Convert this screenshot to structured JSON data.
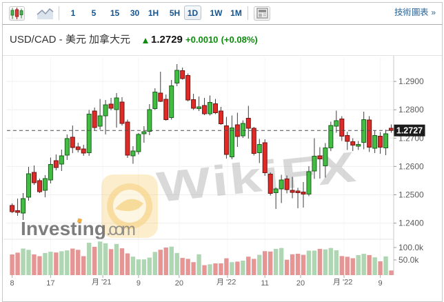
{
  "toolbar": {
    "timeframes": [
      "1",
      "5",
      "15",
      "30",
      "1H",
      "5H",
      "1D",
      "1W",
      "1M"
    ],
    "selected_timeframe": "1D",
    "tech_chart_link": "技術圖表 »"
  },
  "header": {
    "title": "USD/CAD - 美元 加拿大元",
    "last": "1.2729",
    "change": "+0.0010",
    "change_pct": "(+0.08%)"
  },
  "watermark": {
    "text": "WikiFX",
    "brand": "Investing",
    "brand_suffix": ".com"
  },
  "chart_data": {
    "type": "candlestick",
    "symbol": "USD/CAD",
    "interval": "1D",
    "last_price": 1.2727,
    "price_tag": "1.2727",
    "y_axis_labels": [
      "1.2900",
      "1.2800",
      "1.2700",
      "1.2600",
      "1.2500",
      "1.2400"
    ],
    "volume_axis_labels": [
      "100.0k",
      "50.0k"
    ],
    "x_axis_labels": [
      {
        "t": "8",
        "i": 0
      },
      {
        "t": "17",
        "i": 7
      },
      {
        "t": "月 '21",
        "i": 16.5
      },
      {
        "t": "9",
        "i": 23
      },
      {
        "t": "20",
        "i": 30.4
      },
      {
        "t": "月 '22",
        "i": 39.2
      },
      {
        "t": "11",
        "i": 46
      },
      {
        "t": "20",
        "i": 52.5
      },
      {
        "t": "月 '22",
        "i": 60.4
      },
      {
        "t": "9",
        "i": 67
      }
    ],
    "ohlc": [
      [
        1.24623,
        1.24696,
        1.24355,
        1.24404
      ],
      [
        1.2444,
        1.24866,
        1.24258,
        1.2438
      ],
      [
        1.24355,
        1.25061,
        1.24112,
        1.24866
      ],
      [
        1.24915,
        1.25985,
        1.24793,
        1.25742
      ],
      [
        1.25791,
        1.26034,
        1.25353,
        1.25426
      ],
      [
        1.25499,
        1.25572,
        1.25061,
        1.25109
      ],
      [
        1.25158,
        1.25693,
        1.24915,
        1.25572
      ],
      [
        1.25523,
        1.26314,
        1.25401,
        1.26071
      ],
      [
        1.26204,
        1.26423,
        1.25864,
        1.25961
      ],
      [
        1.26083,
        1.26594,
        1.25839,
        1.26375
      ],
      [
        1.26399,
        1.27129,
        1.26229,
        1.26983
      ],
      [
        1.27032,
        1.27445,
        1.26472,
        1.26667
      ],
      [
        1.26691,
        1.26837,
        1.26496,
        1.26594
      ],
      [
        1.26618,
        1.26764,
        1.26375,
        1.26472
      ],
      [
        1.26484,
        1.27993,
        1.26375,
        1.27847
      ],
      [
        1.27956,
        1.28078,
        1.27275,
        1.27372
      ],
      [
        1.27421,
        1.28382,
        1.27299,
        1.27786
      ],
      [
        1.27786,
        1.28345,
        1.27129,
        1.28175
      ],
      [
        1.282,
        1.28418,
        1.27981,
        1.28054
      ],
      [
        1.28005,
        1.28589,
        1.27372,
        1.28418
      ],
      [
        1.28273,
        1.28443,
        1.27445,
        1.27518
      ],
      [
        1.27567,
        1.27652,
        1.26302,
        1.26399
      ],
      [
        1.26375,
        1.26715,
        1.26095,
        1.26545
      ],
      [
        1.26521,
        1.27178,
        1.26423,
        1.27129
      ],
      [
        1.27153,
        1.27421,
        1.26837,
        1.27226
      ],
      [
        1.27238,
        1.282,
        1.27105,
        1.28005
      ],
      [
        1.28041,
        1.28759,
        1.27993,
        1.28625
      ],
      [
        1.28589,
        1.29343,
        1.28273,
        1.28297
      ],
      [
        1.2837,
        1.2854,
        1.27616,
        1.27652
      ],
      [
        1.27725,
        1.29051,
        1.27652,
        1.28844
      ],
      [
        1.28942,
        1.29611,
        1.28832,
        1.29392
      ],
      [
        1.2938,
        1.29489,
        1.29063,
        1.291
      ],
      [
        1.29209,
        1.29282,
        1.28297,
        1.28345
      ],
      [
        1.28358,
        1.28564,
        1.27993,
        1.28054
      ],
      [
        1.28041,
        1.28467,
        1.27956,
        1.28102
      ],
      [
        1.28151,
        1.28418,
        1.2781,
        1.27859
      ],
      [
        1.27859,
        1.28504,
        1.27798,
        1.2826
      ],
      [
        1.28212,
        1.28382,
        1.27847,
        1.27895
      ],
      [
        1.27956,
        1.28102,
        1.2747,
        1.27506
      ],
      [
        1.27433,
        1.27749,
        1.26277,
        1.26423
      ],
      [
        1.26338,
        1.27798,
        1.26253,
        1.2736
      ],
      [
        1.2747,
        1.27895,
        1.26691,
        1.27056
      ],
      [
        1.2708,
        1.27628,
        1.27007,
        1.27518
      ],
      [
        1.27701,
        1.28139,
        1.26983,
        1.27348
      ],
      [
        1.27348,
        1.27397,
        1.26387,
        1.2646
      ],
      [
        1.26484,
        1.26971,
        1.26119,
        1.26776
      ],
      [
        1.26837,
        1.26959,
        1.25669,
        1.25779
      ],
      [
        1.2573,
        1.25791,
        1.24976,
        1.25049
      ],
      [
        1.25073,
        1.25255,
        1.24501,
        1.25207
      ],
      [
        1.25207,
        1.25706,
        1.24708,
        1.25523
      ],
      [
        1.2556,
        1.25681,
        1.25049,
        1.25182
      ],
      [
        1.25158,
        1.25633,
        1.24878,
        1.25085
      ],
      [
        1.25134,
        1.25243,
        1.24526,
        1.25073
      ],
      [
        1.25097,
        1.2545,
        1.2455,
        1.25024
      ],
      [
        1.25024,
        1.2601,
        1.24951,
        1.25815
      ],
      [
        1.25839,
        1.26995,
        1.2556,
        1.26363
      ],
      [
        1.26375,
        1.26679,
        1.25572,
        1.26265
      ],
      [
        1.26022,
        1.26825,
        1.25608,
        1.26655
      ],
      [
        1.26655,
        1.27579,
        1.26545,
        1.27445
      ],
      [
        1.27421,
        1.27968,
        1.2719,
        1.27616
      ],
      [
        1.27676,
        1.27774,
        1.26898,
        1.27068
      ],
      [
        1.27092,
        1.27226,
        1.26582,
        1.26886
      ],
      [
        1.26873,
        1.26995,
        1.26545,
        1.26752
      ],
      [
        1.26715,
        1.26898,
        1.26582,
        1.26776
      ],
      [
        1.26849,
        1.27932,
        1.26606,
        1.27652
      ],
      [
        1.2764,
        1.27774,
        1.26509,
        1.26679
      ],
      [
        1.26642,
        1.27263,
        1.26472,
        1.27092
      ],
      [
        1.27068,
        1.27214,
        1.26448,
        1.26679
      ],
      [
        1.26655,
        1.27299,
        1.26399,
        1.27153
      ],
      [
        1.27348,
        1.27482,
        1.2719,
        1.2727
      ]
    ],
    "volumes_k": [
      72.2,
      79.4,
      95.8,
      90.8,
      72.2,
      65.3,
      78.1,
      83.1,
      80.0,
      85.0,
      88.6,
      95.8,
      90.8,
      65.3,
      119.2,
      102.8,
      124.2,
      117.2,
      93.6,
      114.4,
      96.9,
      76.4,
      63.3,
      52.2,
      52.2,
      59.4,
      82.2,
      91.1,
      100.0,
      103.6,
      78.1,
      58.1,
      54.4,
      41.1,
      72.8,
      28.9,
      32.5,
      36.1,
      36.1,
      56.7,
      41.1,
      43.3,
      47.2,
      63.3,
      54.4,
      70.6,
      85.3,
      83.9,
      94.7,
      98.3,
      50.8,
      72.8,
      75.0,
      70.6,
      87.5,
      87.5,
      94.7,
      92.5,
      98.3,
      88.9,
      65.6,
      62.8,
      56.9,
      69.7,
      74.7,
      69.7,
      60.6,
      44.4,
      64.2,
      7.5
    ],
    "colors": {
      "up": "#41bd41",
      "up_border": "#1c5e1c",
      "down": "#de2b27",
      "down_border": "#6e1512",
      "vol_up": "#aed6b2",
      "vol_down": "#e59694",
      "wick": "#3c3c3c",
      "grid": "#efefef",
      "axis_text": "#5b5b5b"
    }
  }
}
